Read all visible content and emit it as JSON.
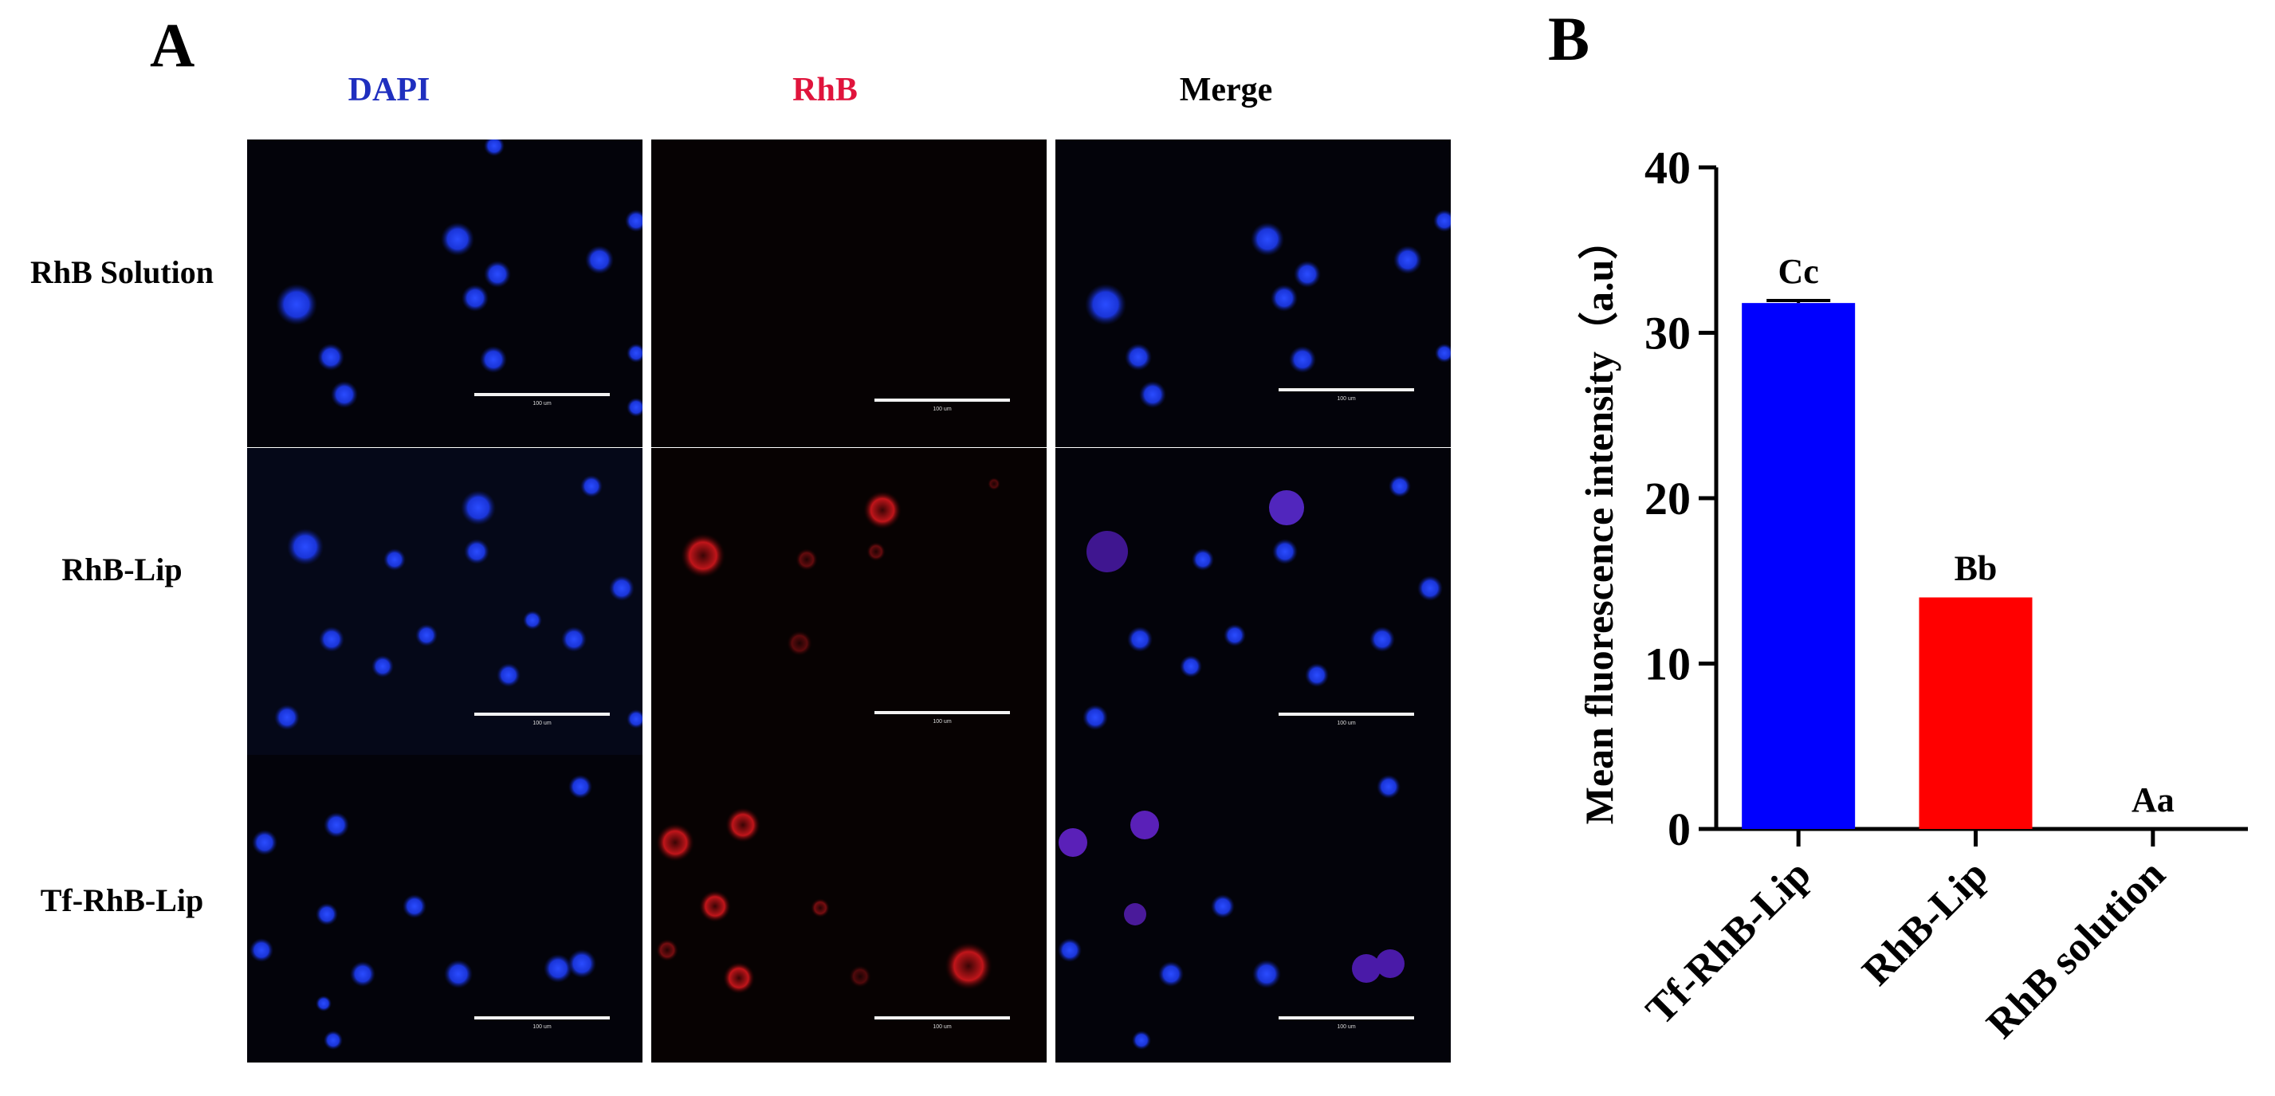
{
  "figure": {
    "panel_a_label": "A",
    "panel_b_label": "B",
    "columns": [
      {
        "label": "DAPI",
        "color": "#1f2fbf"
      },
      {
        "label": "RhB",
        "color": "#e0143c"
      },
      {
        "label": "Merge",
        "color": "#000000"
      }
    ],
    "rows": [
      {
        "label": "RhB Solution"
      },
      {
        "label": "RhB-Lip"
      },
      {
        "label": "Tf-RhB-Lip"
      }
    ],
    "scale_bar_label": "100 um"
  },
  "chart_data": {
    "type": "bar",
    "ylabel": "Mean fluorescence intensity（a.u）",
    "xlabel": "",
    "ylim": [
      0,
      40
    ],
    "yticks": [
      0,
      10,
      20,
      30,
      40
    ],
    "categories": [
      "Tf-RhB-Lip",
      "RhB-Lip",
      "RhB solution"
    ],
    "values": [
      31.8,
      14.0,
      0.0
    ],
    "error": [
      0.15,
      0.0,
      0.0
    ],
    "bar_colors": [
      "#0000ff",
      "#ff0000",
      "#000000"
    ],
    "annotations": [
      "Cc",
      "Bb",
      "Aa"
    ],
    "grid": false
  }
}
